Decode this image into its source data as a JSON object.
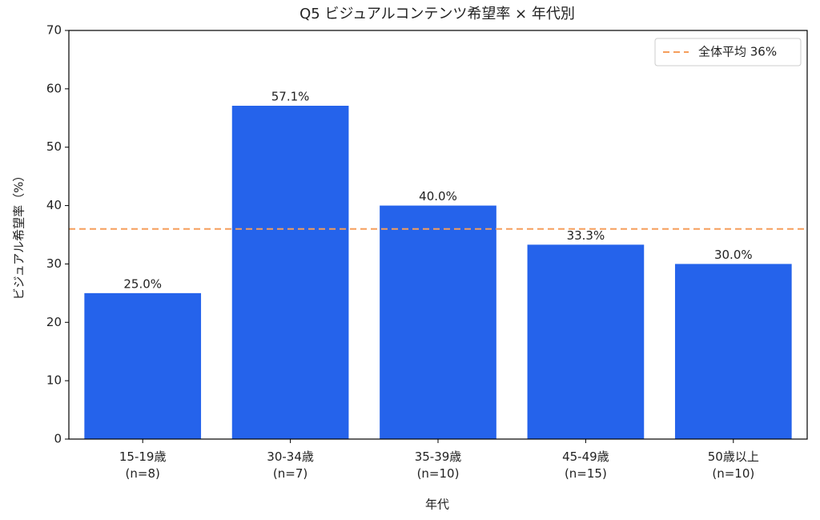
{
  "chart_data": {
    "type": "bar",
    "title": "Q5 ビジュアルコンテンツ希望率 × 年代別",
    "x_label": "年代",
    "y_label": "ビジュアル希望率（%）",
    "categories": [
      "15-19歳\n(n=8)",
      "30-34歳\n(n=7)",
      "35-39歳\n(n=10)",
      "45-49歳\n(n=15)",
      "50歳以上\n(n=10)"
    ],
    "values": [
      25.0,
      57.1,
      40.0,
      33.3,
      30.0
    ],
    "value_labels": [
      "25.0%",
      "57.1%",
      "40.0%",
      "33.3%",
      "30.0%"
    ],
    "color": "#2563eb",
    "ylim": [
      0,
      70
    ],
    "yticks": [
      0,
      10,
      20,
      30,
      40,
      50,
      60,
      70
    ],
    "reference_line": {
      "value": 36,
      "label": "全体平均 36%",
      "color": "#f59e5b"
    },
    "legend": "upper right"
  }
}
